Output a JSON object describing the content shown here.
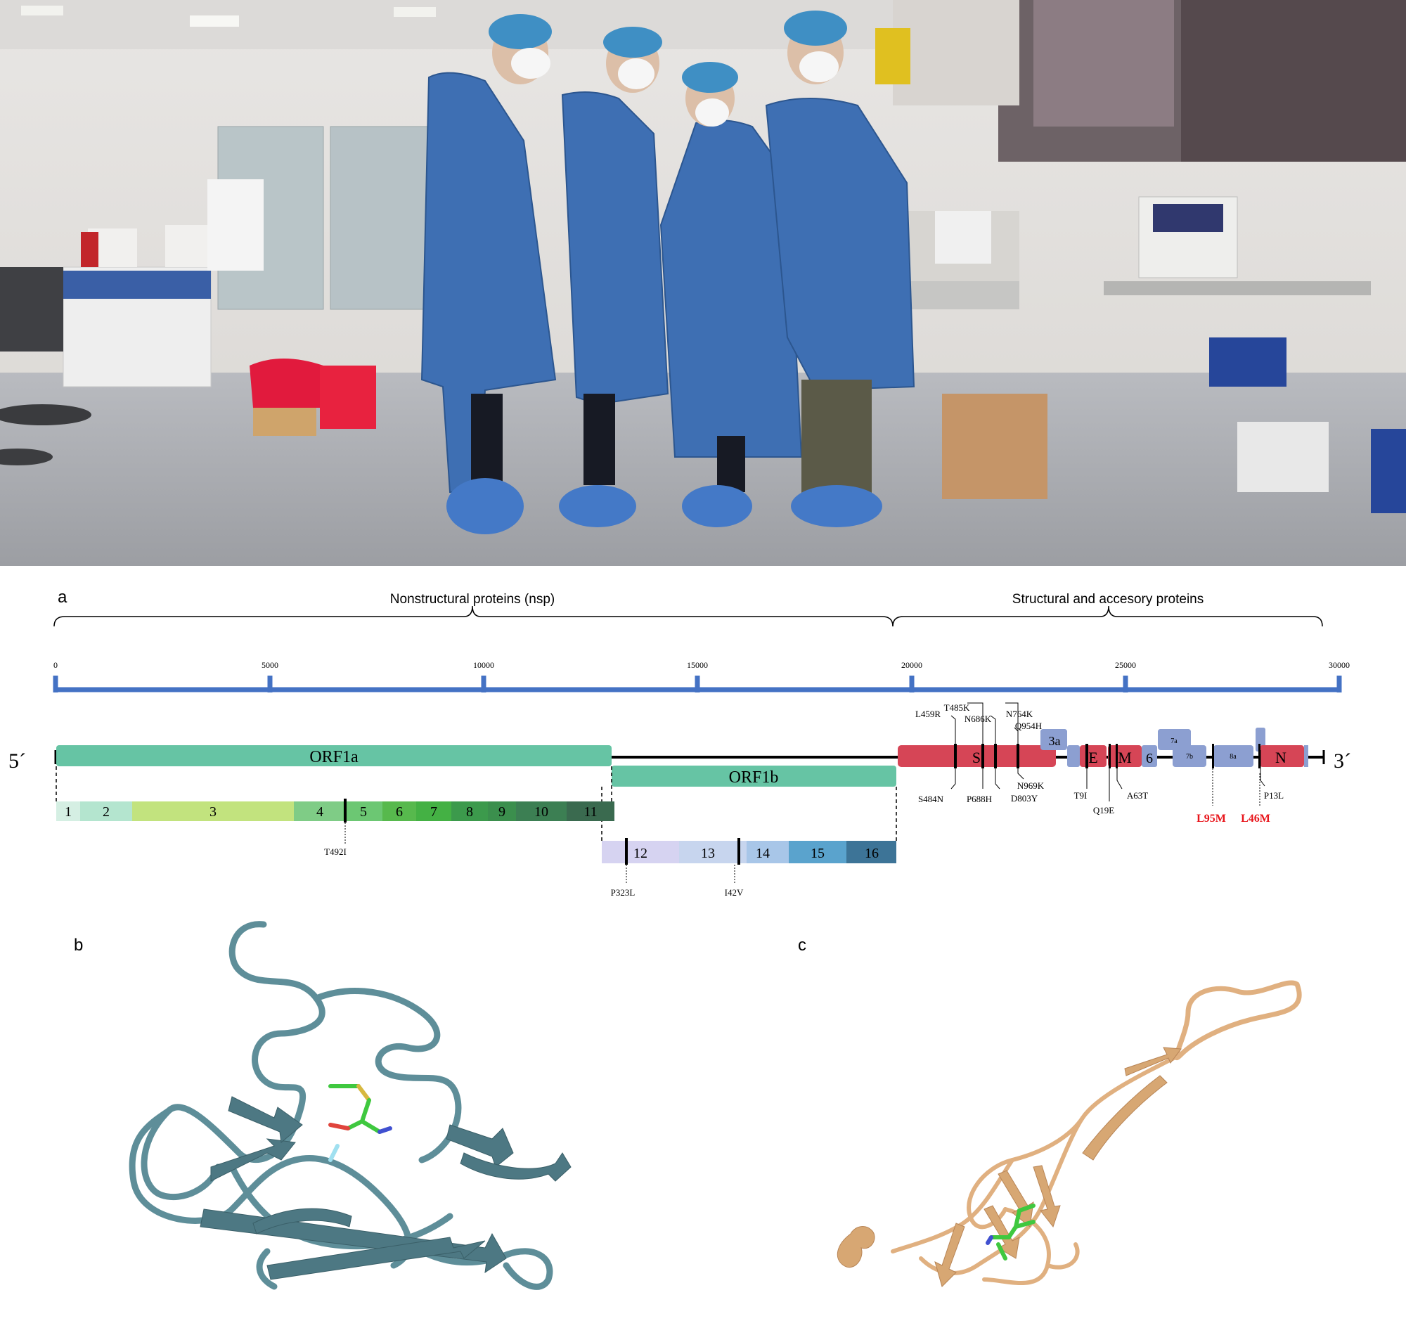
{
  "colors": {
    "orf_green": "#66c4a4",
    "structural_red": "#d64556",
    "accessory_blue": "#8c9fd1",
    "scale_blue": "#4472c4",
    "highlight_red": "#e8141a",
    "protein_b": "#5e8e99",
    "protein_c": "#e0b080"
  },
  "photo": {
    "description": "Four researchers in blue PPE gowns, caps and masks standing in a laboratory",
    "icon": "lab-photo"
  },
  "panel_a": {
    "label": "a",
    "brace_nonstructural": "Nonstructural proteins (nsp)",
    "brace_structural": "Structural and accesory proteins",
    "scale_ticks": [
      "0",
      "5000",
      "10000",
      "15000",
      "20000",
      "25000",
      "30000"
    ],
    "five_prime": "5´",
    "three_prime": "3´",
    "orf1a": "ORF1a",
    "orf1b": "ORF1b",
    "nsp_orf1a": [
      "1",
      "2",
      "3",
      "4",
      "5",
      "6",
      "7",
      "8",
      "9",
      "10",
      "11"
    ],
    "nsp_orf1b": [
      "12",
      "13",
      "14",
      "15",
      "16"
    ],
    "genes": {
      "S": "S",
      "E": "E",
      "M": "M",
      "N": "N",
      "g3a": "3a",
      "g6": "6",
      "g7a": "7a",
      "g7b": "7b",
      "g8a": "8a"
    },
    "mutations": {
      "T492I": "T492I",
      "P323L": "P323L",
      "I42V": "I42V",
      "L459R": "L459R",
      "T485K": "T485K",
      "N686K": "N686K",
      "N764K": "N764K",
      "Q954H": "Q954H",
      "S484N": "S484N",
      "P688H": "P688H",
      "D803Y": "D803Y",
      "N969K": "N969K",
      "T9I": "T9I",
      "Q19E": "Q19E",
      "A63T": "A63T",
      "L95M": "L95M",
      "L46M": "L46M",
      "P13L": "P13L"
    }
  },
  "panel_b": {
    "label": "b",
    "icon": "protein-ribbon-structure"
  },
  "panel_c": {
    "label": "c",
    "icon": "protein-ribbon-structure"
  }
}
